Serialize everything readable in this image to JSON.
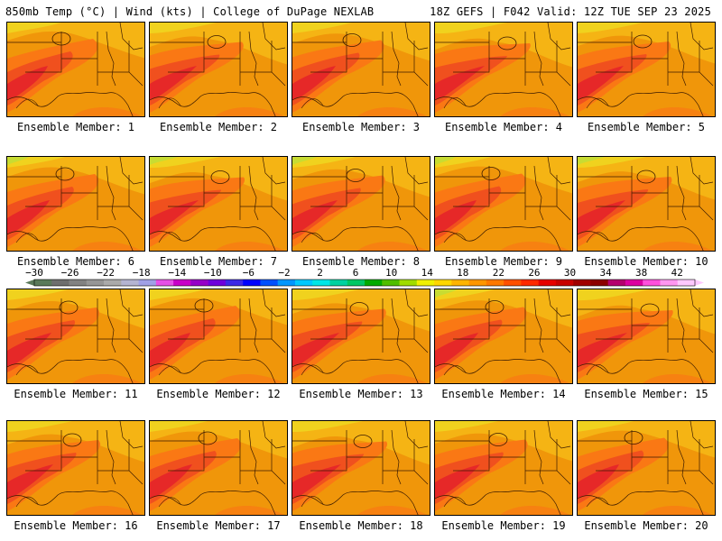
{
  "header": {
    "left": "850mb Temp (°C) | Wind (kts) | College of DuPage NEXLAB",
    "right": "18Z GEFS | F042 Valid: 12Z TUE SEP 23 2025"
  },
  "members": [
    "Ensemble Member: 1",
    "Ensemble Member: 2",
    "Ensemble Member: 3",
    "Ensemble Member: 4",
    "Ensemble Member: 5",
    "Ensemble Member: 6",
    "Ensemble Member: 7",
    "Ensemble Member: 8",
    "Ensemble Member: 9",
    "Ensemble Member: 10",
    "Ensemble Member: 11",
    "Ensemble Member: 12",
    "Ensemble Member: 13",
    "Ensemble Member: 14",
    "Ensemble Member: 15",
    "Ensemble Member: 16",
    "Ensemble Member: 17",
    "Ensemble Member: 18",
    "Ensemble Member: 19",
    "Ensemble Member: 20"
  ],
  "colorbar": {
    "ticks": [
      "-30",
      "-26",
      "-22",
      "-18",
      "-14",
      "-10",
      "-6",
      "-2",
      "2",
      "6",
      "10",
      "14",
      "18",
      "22",
      "26",
      "30",
      "34",
      "38",
      "42"
    ],
    "colors": [
      "#5a7a5a",
      "#6e6e6e",
      "#828282",
      "#969696",
      "#aaaaaa",
      "#b4b4d2",
      "#a0a0e6",
      "#e650e6",
      "#c800c8",
      "#9600c8",
      "#6e00dc",
      "#3c28e6",
      "#0000ff",
      "#0050ff",
      "#0096ff",
      "#00c8ff",
      "#00e6e6",
      "#00d2a0",
      "#00c864",
      "#00aa00",
      "#50be00",
      "#a0dc00",
      "#f0f000",
      "#ffd700",
      "#ffb400",
      "#ff9600",
      "#ff7800",
      "#ff5000",
      "#ff2800",
      "#e60000",
      "#c80000",
      "#a00000",
      "#8c0000",
      "#b4006e",
      "#dc00a0",
      "#ff50dc",
      "#ff96f0",
      "#ffc8ff"
    ],
    "range": [
      -30,
      44
    ]
  },
  "palette": {
    "base": "#f0960a",
    "warm": "#fa7814",
    "hot": "#f0501e",
    "hotter": "#e62828",
    "cool": "#f5b414",
    "cooler": "#f0d21e",
    "cold": "#c8dc32"
  }
}
